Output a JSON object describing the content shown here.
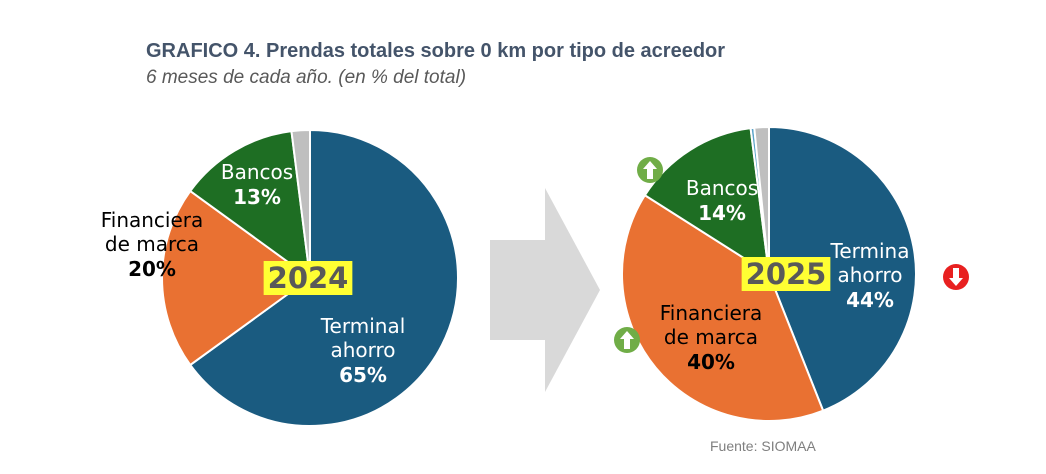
{
  "title": "GRAFICO 4. Prendas totales sobre 0 km por tipo de acreedor",
  "subtitle": "6 meses de cada año. (en % del total)",
  "source": "Fuente: SIOMAA",
  "colors": {
    "terminal": "#1a5b80",
    "financiera": "#e97132",
    "bancos": "#1e6e23",
    "other": "#bfbfbf",
    "other2": "#5ba3c9",
    "arrow_big": "#d9d9d9",
    "arrow_up": "#70ad47",
    "arrow_down": "#e82020"
  },
  "chart_data": [
    {
      "type": "pie",
      "year_label": "2024",
      "slices": [
        {
          "label_lines": [
            "Terminal",
            "ahorro"
          ],
          "value": 65,
          "display": "65%",
          "color": "#1a5b80"
        },
        {
          "label_lines": [
            "Financiera",
            "de marca"
          ],
          "value": 20,
          "display": "20%",
          "color": "#e97132"
        },
        {
          "label_lines": [
            "Bancos"
          ],
          "value": 13,
          "display": "13%",
          "color": "#1e6e23"
        },
        {
          "label_lines": [],
          "value": 2,
          "display": "",
          "color": "#bfbfbf"
        }
      ]
    },
    {
      "type": "pie",
      "year_label": "2025",
      "slices": [
        {
          "label_lines": [
            "Termina",
            "ahorro"
          ],
          "value": 44,
          "display": "44%",
          "color": "#1a5b80",
          "trend": "down"
        },
        {
          "label_lines": [
            "Financiera",
            "de marca"
          ],
          "value": 40,
          "display": "40%",
          "color": "#e97132",
          "trend": "up"
        },
        {
          "label_lines": [
            "Bancos"
          ],
          "value": 14,
          "display": "14%",
          "color": "#1e6e23",
          "trend": "up"
        },
        {
          "label_lines": [],
          "value": 0.4,
          "display": "",
          "color": "#5ba3c9"
        },
        {
          "label_lines": [],
          "value": 1.6,
          "display": "",
          "color": "#bfbfbf"
        }
      ]
    }
  ]
}
